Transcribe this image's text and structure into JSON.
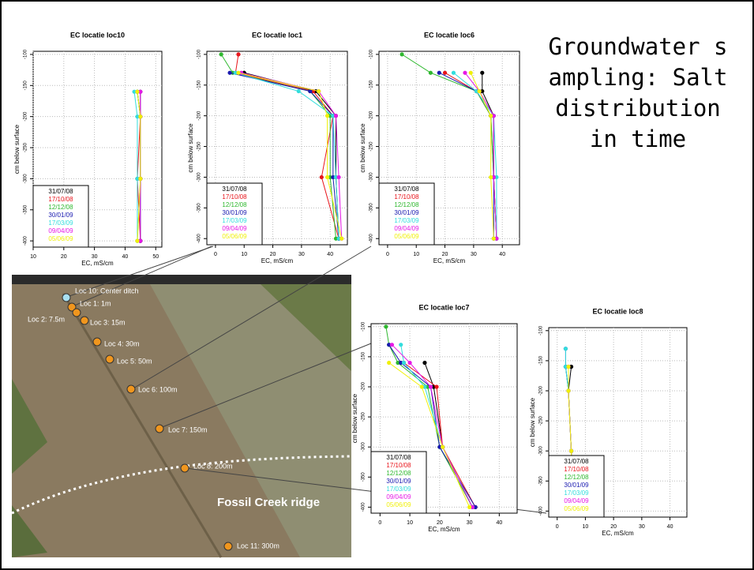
{
  "slide": {
    "title": "Groundwater sampling: Salt distribution in time"
  },
  "map": {
    "labels": [
      "Loc 10: Center ditch",
      "Loc 1: 1m",
      "Loc 2: 7.5m",
      "Loc 3: 15m",
      "Loc 4: 30m",
      "Loc 5: 50m",
      "Loc 6: 100m",
      "Loc 7: 150m",
      "Loc 8: 200m",
      "Loc 11: 300m"
    ],
    "ridge": "Fossil Creek ridge"
  },
  "chart_data": [
    {
      "type": "line",
      "title": "EC locatie loc10",
      "xlabel": "EC, mS/cm",
      "ylabel": "cm below surface",
      "grid": true,
      "depths": [
        -100,
        -130,
        -160,
        -200,
        -300,
        -400
      ],
      "xlim": [
        10,
        52
      ],
      "xticks": [
        10,
        20,
        30,
        40,
        50
      ],
      "ylim": [
        -410,
        -95
      ],
      "yticks": [
        -100,
        -150,
        -200,
        -250,
        -300,
        -350,
        -400
      ],
      "series": [
        {
          "name": "31/07/08",
          "color": "#000000",
          "values": [
            null,
            null,
            44,
            45,
            45,
            45
          ]
        },
        {
          "name": "17/10/08",
          "color": "#e8141b",
          "values": [
            null,
            null,
            45,
            45,
            44,
            45
          ]
        },
        {
          "name": "12/12/08",
          "color": "#2eb82e",
          "values": [
            null,
            null,
            44,
            45,
            45,
            44
          ]
        },
        {
          "name": "30/01/09",
          "color": "#1a1ab0",
          "values": [
            null,
            null,
            45,
            45,
            45,
            45
          ]
        },
        {
          "name": "17/03/09",
          "color": "#33dddd",
          "values": [
            null,
            null,
            43,
            44,
            44,
            44
          ]
        },
        {
          "name": "09/04/09",
          "color": "#e619e6",
          "values": [
            null,
            null,
            45,
            45,
            45,
            45
          ]
        },
        {
          "name": "05/06/09",
          "color": "#f0f00a",
          "values": [
            null,
            null,
            44,
            45,
            45,
            44
          ]
        }
      ]
    },
    {
      "type": "line",
      "title": "EC locatie loc1",
      "xlabel": "EC, mS/cm",
      "ylabel": "cm below surface",
      "grid": true,
      "depths": [
        -100,
        -130,
        -160,
        -200,
        -300,
        -400
      ],
      "xlim": [
        -3,
        46
      ],
      "xticks": [
        0,
        10,
        20,
        30,
        40
      ],
      "ylim": [
        -410,
        -95
      ],
      "yticks": [
        -100,
        -150,
        -200,
        -250,
        -300,
        -350,
        -400
      ],
      "series": [
        {
          "name": "31/07/08",
          "color": "#000000",
          "values": [
            null,
            10,
            35,
            42,
            42,
            43
          ]
        },
        {
          "name": "17/10/08",
          "color": "#e8141b",
          "values": [
            8,
            7,
            34,
            41,
            37,
            43
          ]
        },
        {
          "name": "12/12/08",
          "color": "#2eb82e",
          "values": [
            2,
            6,
            33,
            40,
            40,
            42
          ]
        },
        {
          "name": "30/01/09",
          "color": "#1a1ab0",
          "values": [
            null,
            5,
            33,
            41,
            41,
            43
          ]
        },
        {
          "name": "17/03/09",
          "color": "#33dddd",
          "values": [
            null,
            7,
            29,
            41,
            42,
            43
          ]
        },
        {
          "name": "09/04/09",
          "color": "#e619e6",
          "values": [
            null,
            9,
            36,
            42,
            43,
            44
          ]
        },
        {
          "name": "05/06/09",
          "color": "#f0f00a",
          "values": [
            null,
            8,
            36,
            39,
            39,
            44
          ]
        }
      ]
    },
    {
      "type": "line",
      "title": "EC locatie loc6",
      "xlabel": "EC, mS/cm",
      "ylabel": "cm below surface",
      "grid": true,
      "depths": [
        -100,
        -130,
        -160,
        -200,
        -300,
        -400
      ],
      "xlim": [
        -3,
        46
      ],
      "xticks": [
        0,
        10,
        20,
        30,
        40
      ],
      "ylim": [
        -410,
        -95
      ],
      "yticks": [
        -100,
        -150,
        -200,
        -250,
        -300,
        -350,
        -400
      ],
      "series": [
        {
          "name": "31/07/08",
          "color": "#000000",
          "values": [
            null,
            33,
            33,
            37,
            37,
            38
          ]
        },
        {
          "name": "17/10/08",
          "color": "#e8141b",
          "values": [
            null,
            20,
            31,
            36,
            37,
            38
          ]
        },
        {
          "name": "12/12/08",
          "color": "#2eb82e",
          "values": [
            5,
            15,
            31,
            36,
            37,
            38
          ]
        },
        {
          "name": "30/01/09",
          "color": "#1a1ab0",
          "values": [
            null,
            18,
            31,
            37,
            37,
            37
          ]
        },
        {
          "name": "17/03/09",
          "color": "#33dddd",
          "values": [
            null,
            23,
            31,
            37,
            38,
            38
          ]
        },
        {
          "name": "09/04/09",
          "color": "#e619e6",
          "values": [
            null,
            27,
            32,
            37,
            37,
            38
          ]
        },
        {
          "name": "05/06/09",
          "color": "#f0f00a",
          "values": [
            null,
            29,
            32,
            36,
            36,
            37
          ]
        }
      ]
    },
    {
      "type": "line",
      "title": "EC locatie loc7",
      "xlabel": "EC, mS/cm",
      "ylabel": "cm below surface",
      "grid": true,
      "depths": [
        -100,
        -130,
        -160,
        -200,
        -300,
        -400
      ],
      "xlim": [
        -3,
        46
      ],
      "xticks": [
        0,
        10,
        20,
        30,
        40
      ],
      "ylim": [
        -410,
        -95
      ],
      "yticks": [
        -100,
        -150,
        -200,
        -250,
        -300,
        -350,
        -400
      ],
      "series": [
        {
          "name": "31/07/08",
          "color": "#000000",
          "values": [
            null,
            null,
            15,
            18,
            21,
            31
          ]
        },
        {
          "name": "17/10/08",
          "color": "#e8141b",
          "values": [
            null,
            null,
            8,
            19,
            21,
            32
          ]
        },
        {
          "name": "12/12/08",
          "color": "#2eb82e",
          "values": [
            2,
            3,
            6,
            16,
            20,
            31
          ]
        },
        {
          "name": "30/01/09",
          "color": "#1a1ab0",
          "values": [
            null,
            3,
            7,
            17,
            20,
            32
          ]
        },
        {
          "name": "17/03/09",
          "color": "#33dddd",
          "values": [
            null,
            7,
            8,
            15,
            21,
            31
          ]
        },
        {
          "name": "09/04/09",
          "color": "#e619e6",
          "values": [
            null,
            4,
            10,
            17,
            21,
            31
          ]
        },
        {
          "name": "05/06/09",
          "color": "#f0f00a",
          "values": [
            null,
            null,
            3,
            14,
            21,
            30
          ]
        }
      ]
    },
    {
      "type": "line",
      "title": "EC locatie loc8",
      "xlabel": "EC, mS/cm",
      "ylabel": "cm below surface",
      "grid": true,
      "depths": [
        -100,
        -130,
        -160,
        -200,
        -300,
        -400
      ],
      "xlim": [
        -3,
        46
      ],
      "xticks": [
        0,
        10,
        20,
        30,
        40
      ],
      "ylim": [
        -410,
        -95
      ],
      "yticks": [
        -100,
        -150,
        -200,
        -250,
        -300,
        -350,
        -400
      ],
      "series": [
        {
          "name": "31/07/08",
          "color": "#000000",
          "values": [
            null,
            null,
            5,
            4,
            5,
            5
          ]
        },
        {
          "name": "17/10/08",
          "color": "#e8141b",
          "values": [
            null,
            null,
            4,
            4,
            5,
            5
          ]
        },
        {
          "name": "12/12/08",
          "color": "#2eb82e",
          "values": [
            null,
            null,
            3,
            4,
            5,
            5
          ]
        },
        {
          "name": "30/01/09",
          "color": "#1a1ab0",
          "values": [
            null,
            3,
            3,
            4,
            5,
            5
          ]
        },
        {
          "name": "17/03/09",
          "color": "#33dddd",
          "values": [
            null,
            3,
            3,
            4,
            5,
            5
          ]
        },
        {
          "name": "09/04/09",
          "color": "#e619e6",
          "values": [
            null,
            null,
            4,
            4,
            5,
            5
          ]
        },
        {
          "name": "05/06/09",
          "color": "#f0f00a",
          "values": [
            null,
            null,
            4,
            4,
            5,
            5
          ]
        }
      ]
    }
  ]
}
